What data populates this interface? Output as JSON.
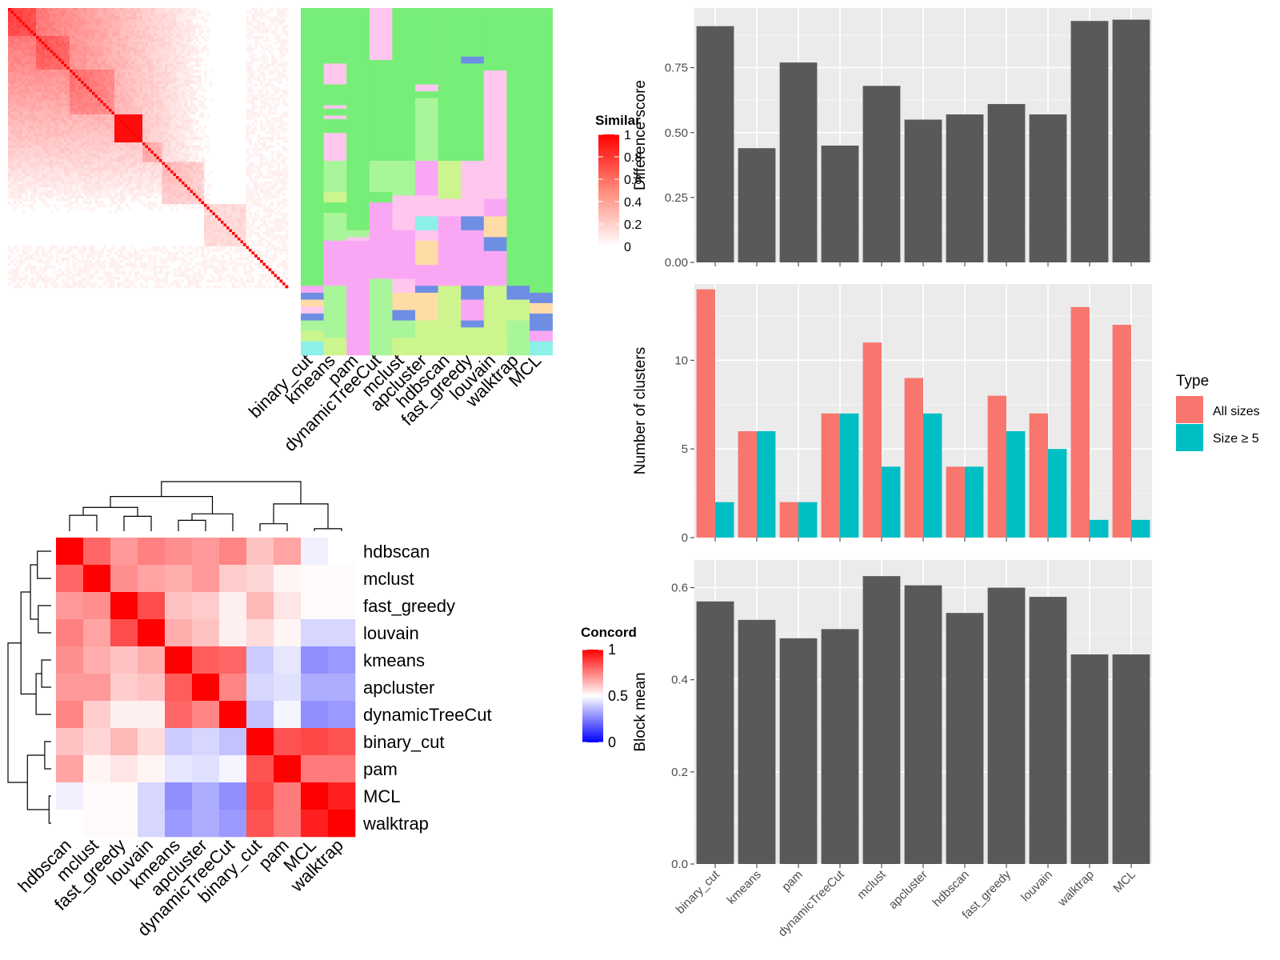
{
  "methods_order": [
    "binary_cut",
    "kmeans",
    "pam",
    "dynamicTreeCut",
    "mclust",
    "apcluster",
    "hdbscan",
    "fast_greedy",
    "louvain",
    "walktrap",
    "MCL"
  ],
  "similarity_heatmap": {
    "legend_title": "Similar",
    "legend_ticks": [
      "1",
      "0.8",
      "0.6",
      "0.4",
      "0.2",
      "0"
    ],
    "colors": {
      "high": "#FF0000",
      "low": "#FFFFFF"
    }
  },
  "cluster_panel": {
    "columns": [
      "binary_cut",
      "kmeans",
      "pam",
      "dynamicTreeCut",
      "mclust",
      "apcluster",
      "hdbscan",
      "fast_greedy",
      "louvain",
      "walktrap",
      "MCL"
    ],
    "palette": [
      "#77EE77",
      "#F9A7F4",
      "#A9F59A",
      "#FFC6EE",
      "#8CF0E8",
      "#FFDCA5",
      "#6E8EE4",
      "#CCF58E"
    ]
  },
  "concordance_heatmap": {
    "legend_title": "Concord",
    "legend_ticks": [
      "1",
      "0.5",
      "0"
    ],
    "rows": [
      "hdbscan",
      "mclust",
      "fast_greedy",
      "louvain",
      "kmeans",
      "apcluster",
      "dynamicTreeCut",
      "binary_cut",
      "pam",
      "MCL",
      "walktrap"
    ],
    "columns": [
      "hdbscan",
      "mclust",
      "fast_greedy",
      "louvain",
      "kmeans",
      "apcluster",
      "dynamicTreeCut",
      "binary_cut",
      "pam",
      "MCL",
      "walktrap"
    ],
    "values": [
      [
        1.0,
        0.8,
        0.7,
        0.75,
        0.72,
        0.7,
        0.74,
        0.62,
        0.68,
        0.47,
        0.5
      ],
      [
        0.8,
        1.0,
        0.72,
        0.68,
        0.66,
        0.7,
        0.6,
        0.58,
        0.52,
        0.51,
        0.51
      ],
      [
        0.7,
        0.72,
        1.0,
        0.85,
        0.62,
        0.6,
        0.53,
        0.64,
        0.55,
        0.51,
        0.51
      ],
      [
        0.75,
        0.68,
        0.85,
        1.0,
        0.66,
        0.62,
        0.53,
        0.57,
        0.52,
        0.42,
        0.42
      ],
      [
        0.72,
        0.66,
        0.62,
        0.66,
        1.0,
        0.82,
        0.8,
        0.4,
        0.45,
        0.28,
        0.3
      ],
      [
        0.7,
        0.7,
        0.6,
        0.62,
        0.82,
        1.0,
        0.74,
        0.42,
        0.44,
        0.34,
        0.34
      ],
      [
        0.74,
        0.6,
        0.53,
        0.53,
        0.8,
        0.74,
        1.0,
        0.38,
        0.48,
        0.28,
        0.3
      ],
      [
        0.62,
        0.58,
        0.64,
        0.57,
        0.4,
        0.42,
        0.38,
        1.0,
        0.84,
        0.86,
        0.84
      ],
      [
        0.68,
        0.52,
        0.55,
        0.52,
        0.45,
        0.44,
        0.48,
        0.84,
        1.0,
        0.76,
        0.76
      ],
      [
        0.47,
        0.51,
        0.51,
        0.42,
        0.28,
        0.34,
        0.28,
        0.86,
        0.76,
        1.0,
        0.94
      ],
      [
        0.5,
        0.51,
        0.51,
        0.42,
        0.3,
        0.34,
        0.3,
        0.84,
        0.76,
        0.94,
        1.0
      ]
    ]
  },
  "chart_data": [
    {
      "type": "bar",
      "ylabel": "Difference score",
      "categories": [
        "binary_cut",
        "kmeans",
        "pam",
        "dynamicTreeCut",
        "mclust",
        "apcluster",
        "hdbscan",
        "fast_greedy",
        "louvain",
        "walktrap",
        "MCL"
      ],
      "values": [
        0.91,
        0.44,
        0.77,
        0.45,
        0.68,
        0.55,
        0.57,
        0.61,
        0.57,
        0.93,
        0.935
      ],
      "ylim": [
        0,
        0.98
      ],
      "yticks": [
        0.0,
        0.25,
        0.5,
        0.75
      ],
      "ytick_labels": [
        "0.00",
        "0.25",
        "0.50",
        "0.75"
      ],
      "bar_color": "#595959",
      "show_x_labels": false
    },
    {
      "type": "bar",
      "ylabel": "Number of clusters",
      "categories": [
        "binary_cut",
        "kmeans",
        "pam",
        "dynamicTreeCut",
        "mclust",
        "apcluster",
        "hdbscan",
        "fast_greedy",
        "louvain",
        "walktrap",
        "MCL"
      ],
      "series": [
        {
          "name": "All sizes",
          "values": [
            14,
            6,
            2,
            7,
            11,
            9,
            4,
            8,
            7,
            13,
            12
          ],
          "color": "#F8766D"
        },
        {
          "name": "Size ≥ 5",
          "values": [
            2,
            6,
            2,
            7,
            4,
            7,
            4,
            6,
            5,
            1,
            1
          ],
          "color": "#00BFC4"
        }
      ],
      "ylim": [
        0,
        14.3
      ],
      "yticks": [
        0,
        5,
        10
      ],
      "ytick_labels": [
        "0",
        "5",
        "10"
      ],
      "legend_title": "Type",
      "legend_position": "right",
      "show_x_labels": false
    },
    {
      "type": "bar",
      "ylabel": "Block mean",
      "categories": [
        "binary_cut",
        "kmeans",
        "pam",
        "dynamicTreeCut",
        "mclust",
        "apcluster",
        "hdbscan",
        "fast_greedy",
        "louvain",
        "walktrap",
        "MCL"
      ],
      "values": [
        0.57,
        0.53,
        0.49,
        0.51,
        0.625,
        0.605,
        0.545,
        0.6,
        0.58,
        0.455,
        0.455
      ],
      "ylim": [
        0,
        0.66
      ],
      "yticks": [
        0.0,
        0.2,
        0.4,
        0.6
      ],
      "ytick_labels": [
        "0.0",
        "0.2",
        "0.4",
        "0.6"
      ],
      "bar_color": "#595959",
      "show_x_labels": true
    }
  ]
}
